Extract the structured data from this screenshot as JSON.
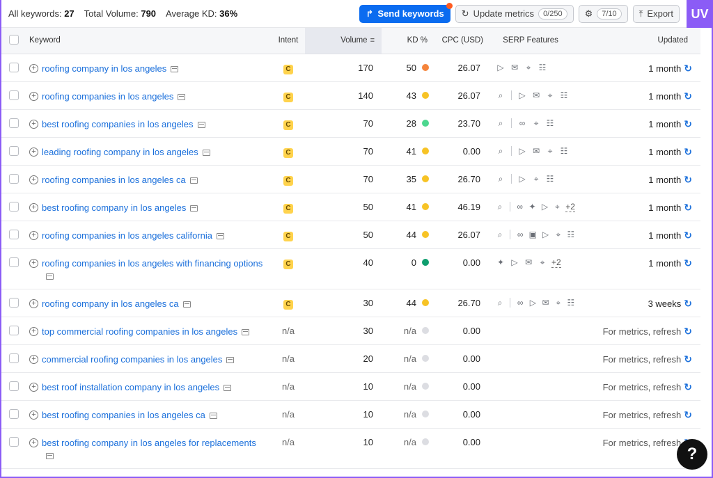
{
  "summary": {
    "all_keywords_label": "All keywords:",
    "all_keywords_value": "27",
    "total_volume_label": "Total Volume:",
    "total_volume_value": "790",
    "avg_kd_label": "Average KD:",
    "avg_kd_value": "36%"
  },
  "actions": {
    "send_label": "Send keywords",
    "update_label": "Update metrics",
    "update_counter": "0/250",
    "settings_counter": "7/10",
    "export_label": "Export",
    "uv_label": "UV"
  },
  "columns": {
    "keyword": "Keyword",
    "intent": "Intent",
    "volume": "Volume",
    "kd": "KD %",
    "cpc": "CPC (USD)",
    "serp": "SERP Features",
    "updated": "Updated"
  },
  "rows": [
    {
      "keyword": "roofing company in los angeles",
      "intent": "C",
      "volume": "170",
      "kd": "50",
      "kd_color": "#f5843b",
      "cpc": "26.07",
      "serp": [
        "play",
        "chat",
        "pin",
        "list"
      ],
      "updated": "1 month"
    },
    {
      "keyword": "roofing companies in los angeles",
      "intent": "C",
      "volume": "140",
      "kd": "43",
      "kd_color": "#f7c325",
      "cpc": "26.07",
      "serp": [
        "search",
        "sep",
        "play",
        "chat",
        "pin",
        "list"
      ],
      "updated": "1 month"
    },
    {
      "keyword": "best roofing companies in los angeles",
      "intent": "C",
      "volume": "70",
      "kd": "28",
      "kd_color": "#4cd78f",
      "cpc": "23.70",
      "serp": [
        "search",
        "sep",
        "link",
        "pin",
        "list"
      ],
      "updated": "1 month"
    },
    {
      "keyword": "leading roofing company in los angeles",
      "intent": "C",
      "volume": "70",
      "kd": "41",
      "kd_color": "#f7c325",
      "cpc": "0.00",
      "serp": [
        "search",
        "sep",
        "play",
        "chat",
        "pin",
        "list"
      ],
      "updated": "1 month"
    },
    {
      "keyword": "roofing companies in los angeles ca",
      "intent": "C",
      "volume": "70",
      "kd": "35",
      "kd_color": "#f7c325",
      "cpc": "26.70",
      "serp": [
        "search",
        "sep",
        "play",
        "pin",
        "list"
      ],
      "updated": "1 month"
    },
    {
      "keyword": "best roofing company in los angeles",
      "intent": "C",
      "volume": "50",
      "kd": "41",
      "kd_color": "#f7c325",
      "cpc": "46.19",
      "serp": [
        "search",
        "sep",
        "link",
        "gear",
        "play",
        "pin"
      ],
      "more": "+2",
      "updated": "1 month"
    },
    {
      "keyword": "roofing companies in los angeles california",
      "intent": "C",
      "volume": "50",
      "kd": "44",
      "kd_color": "#f7c325",
      "cpc": "26.07",
      "serp": [
        "search",
        "sep",
        "link",
        "image",
        "play",
        "pin",
        "list"
      ],
      "updated": "1 month"
    },
    {
      "keyword": "roofing companies in los angeles with financing options",
      "intent": "C",
      "volume": "40",
      "kd": "0",
      "kd_color": "#0e9e6e",
      "cpc": "0.00",
      "serp": [
        "gear",
        "play",
        "chat",
        "pin"
      ],
      "more": "+2",
      "updated": "1 month",
      "tall": true
    },
    {
      "keyword": "roofing company in los angeles ca",
      "intent": "C",
      "volume": "30",
      "kd": "44",
      "kd_color": "#f7c325",
      "cpc": "26.70",
      "serp": [
        "search",
        "sep",
        "link",
        "play",
        "chat",
        "pin",
        "list"
      ],
      "updated": "3 weeks"
    },
    {
      "keyword": "top commercial roofing companies in los angeles",
      "intent": "n/a",
      "volume": "30",
      "kd": "n/a",
      "kd_color": "#dcdde2",
      "cpc": "0.00",
      "serp": [],
      "updated": "For metrics, refresh"
    },
    {
      "keyword": "commercial roofing companies in los angeles",
      "intent": "n/a",
      "volume": "20",
      "kd": "n/a",
      "kd_color": "#dcdde2",
      "cpc": "0.00",
      "serp": [],
      "updated": "For metrics, refresh"
    },
    {
      "keyword": "best roof installation company in los angeles",
      "intent": "n/a",
      "volume": "10",
      "kd": "n/a",
      "kd_color": "#dcdde2",
      "cpc": "0.00",
      "serp": [],
      "updated": "For metrics, refresh"
    },
    {
      "keyword": "best roofing companies in los angeles ca",
      "intent": "n/a",
      "volume": "10",
      "kd": "n/a",
      "kd_color": "#dcdde2",
      "cpc": "0.00",
      "serp": [],
      "updated": "For metrics, refresh"
    },
    {
      "keyword": "best roofing company in los angeles for replacements",
      "intent": "n/a",
      "volume": "10",
      "kd": "n/a",
      "kd_color": "#dcdde2",
      "cpc": "0.00",
      "serp": [],
      "updated": "For metrics, refresh",
      "tall": true
    }
  ],
  "help_label": "?"
}
